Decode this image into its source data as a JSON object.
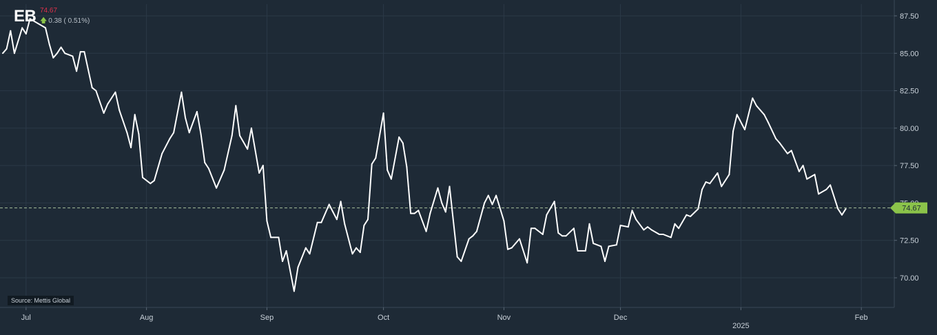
{
  "header": {
    "ticker": "EB",
    "last_price": "74.67",
    "change": "0.38 ( 0.51%)",
    "arrow_icon": "up-arrow-icon"
  },
  "source_label": "Source: Mettis Global",
  "price_badge": "74.67",
  "colors": {
    "background": "#1e2a36",
    "line": "#ffffff",
    "grid": "#2b3947",
    "badge": "#8bc34a",
    "price_negative": "#e0314b",
    "price_change_arrow": "#8bc34a",
    "reference_line": "#a8c09a"
  },
  "chart_data": {
    "type": "line",
    "title": "",
    "xlabel": "",
    "ylabel": "",
    "ylim": [
      68.5,
      88.5
    ],
    "yticks": [
      70.0,
      72.5,
      75.0,
      77.5,
      80.0,
      82.5,
      85.0,
      87.5
    ],
    "ytick_labels": [
      "70.00",
      "72.50",
      "75.00",
      "77.50",
      "80.00",
      "82.50",
      "85.00",
      "87.50"
    ],
    "x_range": [
      "2024-06-25",
      "2025-02-07"
    ],
    "xticks": [
      {
        "date": "2024-07-01",
        "label": "Jul"
      },
      {
        "date": "2024-08-01",
        "label": "Aug"
      },
      {
        "date": "2024-09-01",
        "label": "Sep"
      },
      {
        "date": "2024-10-01",
        "label": "Oct"
      },
      {
        "date": "2024-11-01",
        "label": "Nov"
      },
      {
        "date": "2024-12-01",
        "label": "Dec"
      },
      {
        "date": "2025-01-01",
        "label": "2025"
      },
      {
        "date": "2025-02-01",
        "label": "Feb"
      }
    ],
    "reference_value": 74.67,
    "grid": true,
    "series": [
      {
        "values": [
          {
            "x": "2024-06-25",
            "y": 85.0
          },
          {
            "x": "2024-06-26",
            "y": 85.3
          },
          {
            "x": "2024-06-27",
            "y": 86.5
          },
          {
            "x": "2024-06-28",
            "y": 85.0
          },
          {
            "x": "2024-06-30",
            "y": 86.7
          },
          {
            "x": "2024-07-01",
            "y": 86.3
          },
          {
            "x": "2024-07-02",
            "y": 87.3
          },
          {
            "x": "2024-07-06",
            "y": 86.7
          },
          {
            "x": "2024-07-07",
            "y": 85.6
          },
          {
            "x": "2024-07-08",
            "y": 84.7
          },
          {
            "x": "2024-07-09",
            "y": 85.0
          },
          {
            "x": "2024-07-10",
            "y": 85.4
          },
          {
            "x": "2024-07-11",
            "y": 85.0
          },
          {
            "x": "2024-07-13",
            "y": 84.8
          },
          {
            "x": "2024-07-14",
            "y": 83.8
          },
          {
            "x": "2024-07-15",
            "y": 85.1
          },
          {
            "x": "2024-07-16",
            "y": 85.1
          },
          {
            "x": "2024-07-18",
            "y": 82.7
          },
          {
            "x": "2024-07-19",
            "y": 82.5
          },
          {
            "x": "2024-07-21",
            "y": 81.0
          },
          {
            "x": "2024-07-22",
            "y": 81.6
          },
          {
            "x": "2024-07-24",
            "y": 82.4
          },
          {
            "x": "2024-07-25",
            "y": 81.2
          },
          {
            "x": "2024-07-27",
            "y": 79.7
          },
          {
            "x": "2024-07-28",
            "y": 78.7
          },
          {
            "x": "2024-07-29",
            "y": 80.9
          },
          {
            "x": "2024-07-30",
            "y": 79.6
          },
          {
            "x": "2024-07-31",
            "y": 76.7
          },
          {
            "x": "2024-08-02",
            "y": 76.3
          },
          {
            "x": "2024-08-03",
            "y": 76.5
          },
          {
            "x": "2024-08-05",
            "y": 78.3
          },
          {
            "x": "2024-08-07",
            "y": 79.3
          },
          {
            "x": "2024-08-08",
            "y": 79.7
          },
          {
            "x": "2024-08-10",
            "y": 82.4
          },
          {
            "x": "2024-08-11",
            "y": 80.7
          },
          {
            "x": "2024-08-12",
            "y": 79.7
          },
          {
            "x": "2024-08-14",
            "y": 81.1
          },
          {
            "x": "2024-08-15",
            "y": 79.6
          },
          {
            "x": "2024-08-16",
            "y": 77.7
          },
          {
            "x": "2024-08-17",
            "y": 77.3
          },
          {
            "x": "2024-08-19",
            "y": 76.0
          },
          {
            "x": "2024-08-21",
            "y": 77.2
          },
          {
            "x": "2024-08-23",
            "y": 79.5
          },
          {
            "x": "2024-08-24",
            "y": 81.5
          },
          {
            "x": "2024-08-25",
            "y": 79.5
          },
          {
            "x": "2024-08-27",
            "y": 78.6
          },
          {
            "x": "2024-08-28",
            "y": 80.0
          },
          {
            "x": "2024-08-30",
            "y": 77.0
          },
          {
            "x": "2024-08-31",
            "y": 77.5
          },
          {
            "x": "2024-09-01",
            "y": 73.8
          },
          {
            "x": "2024-09-02",
            "y": 72.7
          },
          {
            "x": "2024-09-04",
            "y": 72.7
          },
          {
            "x": "2024-09-05",
            "y": 71.1
          },
          {
            "x": "2024-09-06",
            "y": 71.8
          },
          {
            "x": "2024-09-08",
            "y": 69.1
          },
          {
            "x": "2024-09-09",
            "y": 70.7
          },
          {
            "x": "2024-09-11",
            "y": 72.0
          },
          {
            "x": "2024-09-12",
            "y": 71.6
          },
          {
            "x": "2024-09-14",
            "y": 73.7
          },
          {
            "x": "2024-09-15",
            "y": 73.7
          },
          {
            "x": "2024-09-17",
            "y": 74.9
          },
          {
            "x": "2024-09-18",
            "y": 74.4
          },
          {
            "x": "2024-09-19",
            "y": 73.9
          },
          {
            "x": "2024-09-20",
            "y": 75.1
          },
          {
            "x": "2024-09-21",
            "y": 73.6
          },
          {
            "x": "2024-09-23",
            "y": 71.6
          },
          {
            "x": "2024-09-24",
            "y": 72.0
          },
          {
            "x": "2024-09-25",
            "y": 71.7
          },
          {
            "x": "2024-09-26",
            "y": 73.5
          },
          {
            "x": "2024-09-27",
            "y": 73.9
          },
          {
            "x": "2024-09-28",
            "y": 77.6
          },
          {
            "x": "2024-09-29",
            "y": 78.0
          },
          {
            "x": "2024-10-01",
            "y": 81.0
          },
          {
            "x": "2024-10-02",
            "y": 77.2
          },
          {
            "x": "2024-10-03",
            "y": 76.6
          },
          {
            "x": "2024-10-05",
            "y": 79.4
          },
          {
            "x": "2024-10-06",
            "y": 79.0
          },
          {
            "x": "2024-10-07",
            "y": 77.4
          },
          {
            "x": "2024-10-08",
            "y": 74.3
          },
          {
            "x": "2024-10-09",
            "y": 74.3
          },
          {
            "x": "2024-10-10",
            "y": 74.5
          },
          {
            "x": "2024-10-12",
            "y": 73.1
          },
          {
            "x": "2024-10-13",
            "y": 74.3
          },
          {
            "x": "2024-10-15",
            "y": 76.0
          },
          {
            "x": "2024-10-16",
            "y": 75.0
          },
          {
            "x": "2024-10-17",
            "y": 74.4
          },
          {
            "x": "2024-10-18",
            "y": 76.1
          },
          {
            "x": "2024-10-20",
            "y": 71.4
          },
          {
            "x": "2024-10-21",
            "y": 71.1
          },
          {
            "x": "2024-10-23",
            "y": 72.6
          },
          {
            "x": "2024-10-24",
            "y": 72.8
          },
          {
            "x": "2024-10-25",
            "y": 73.1
          },
          {
            "x": "2024-10-27",
            "y": 75.0
          },
          {
            "x": "2024-10-28",
            "y": 75.5
          },
          {
            "x": "2024-10-29",
            "y": 74.9
          },
          {
            "x": "2024-10-30",
            "y": 75.5
          },
          {
            "x": "2024-11-01",
            "y": 73.8
          },
          {
            "x": "2024-11-02",
            "y": 71.9
          },
          {
            "x": "2024-11-03",
            "y": 72.0
          },
          {
            "x": "2024-11-04",
            "y": 72.3
          },
          {
            "x": "2024-11-05",
            "y": 72.6
          },
          {
            "x": "2024-11-07",
            "y": 71.0
          },
          {
            "x": "2024-11-08",
            "y": 73.3
          },
          {
            "x": "2024-11-09",
            "y": 73.3
          },
          {
            "x": "2024-11-11",
            "y": 72.9
          },
          {
            "x": "2024-11-12",
            "y": 74.2
          },
          {
            "x": "2024-11-14",
            "y": 75.1
          },
          {
            "x": "2024-11-15",
            "y": 73.0
          },
          {
            "x": "2024-11-16",
            "y": 72.8
          },
          {
            "x": "2024-11-17",
            "y": 72.8
          },
          {
            "x": "2024-11-19",
            "y": 73.3
          },
          {
            "x": "2024-11-20",
            "y": 71.8
          },
          {
            "x": "2024-11-22",
            "y": 71.8
          },
          {
            "x": "2024-11-23",
            "y": 73.6
          },
          {
            "x": "2024-11-24",
            "y": 72.3
          },
          {
            "x": "2024-11-26",
            "y": 72.1
          },
          {
            "x": "2024-11-27",
            "y": 71.1
          },
          {
            "x": "2024-11-28",
            "y": 72.1
          },
          {
            "x": "2024-11-30",
            "y": 72.2
          },
          {
            "x": "2024-12-01",
            "y": 73.5
          },
          {
            "x": "2024-12-03",
            "y": 73.4
          },
          {
            "x": "2024-12-04",
            "y": 74.5
          },
          {
            "x": "2024-12-05",
            "y": 73.9
          },
          {
            "x": "2024-12-07",
            "y": 73.2
          },
          {
            "x": "2024-12-08",
            "y": 73.4
          },
          {
            "x": "2024-12-09",
            "y": 73.2
          },
          {
            "x": "2024-12-11",
            "y": 72.9
          },
          {
            "x": "2024-12-12",
            "y": 72.9
          },
          {
            "x": "2024-12-14",
            "y": 72.7
          },
          {
            "x": "2024-12-15",
            "y": 73.6
          },
          {
            "x": "2024-12-16",
            "y": 73.3
          },
          {
            "x": "2024-12-18",
            "y": 74.2
          },
          {
            "x": "2024-12-19",
            "y": 74.1
          },
          {
            "x": "2024-12-21",
            "y": 74.6
          },
          {
            "x": "2024-12-22",
            "y": 75.9
          },
          {
            "x": "2024-12-23",
            "y": 76.4
          },
          {
            "x": "2024-12-24",
            "y": 76.3
          },
          {
            "x": "2024-12-26",
            "y": 77.0
          },
          {
            "x": "2024-12-27",
            "y": 76.1
          },
          {
            "x": "2024-12-29",
            "y": 76.9
          },
          {
            "x": "2024-12-30",
            "y": 79.8
          },
          {
            "x": "2024-12-31",
            "y": 80.9
          },
          {
            "x": "2025-01-02",
            "y": 79.9
          },
          {
            "x": "2025-01-04",
            "y": 82.0
          },
          {
            "x": "2025-01-05",
            "y": 81.5
          },
          {
            "x": "2025-01-07",
            "y": 80.9
          },
          {
            "x": "2025-01-08",
            "y": 80.4
          },
          {
            "x": "2025-01-10",
            "y": 79.3
          },
          {
            "x": "2025-01-11",
            "y": 79.0
          },
          {
            "x": "2025-01-13",
            "y": 78.3
          },
          {
            "x": "2025-01-14",
            "y": 78.5
          },
          {
            "x": "2025-01-16",
            "y": 77.1
          },
          {
            "x": "2025-01-17",
            "y": 77.5
          },
          {
            "x": "2025-01-18",
            "y": 76.6
          },
          {
            "x": "2025-01-20",
            "y": 76.9
          },
          {
            "x": "2025-01-21",
            "y": 75.6
          },
          {
            "x": "2025-01-23",
            "y": 75.9
          },
          {
            "x": "2025-01-24",
            "y": 76.2
          },
          {
            "x": "2025-01-26",
            "y": 74.6
          },
          {
            "x": "2025-01-27",
            "y": 74.2
          },
          {
            "x": "2025-01-28",
            "y": 74.6
          }
        ]
      }
    ]
  }
}
